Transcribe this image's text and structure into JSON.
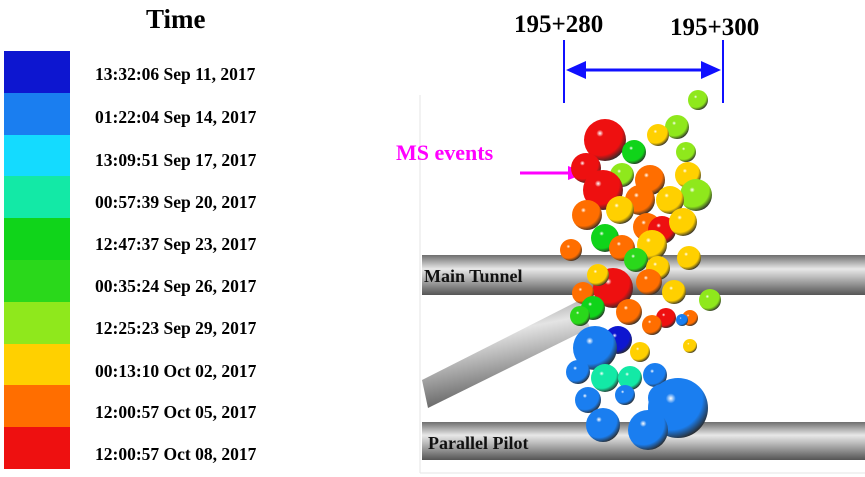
{
  "legend": {
    "title": "Time",
    "entries": [
      {
        "label": "13:32:06 Sep 11, 2017",
        "color": "#0d16d0"
      },
      {
        "label": "01:22:04 Sep 14, 2017",
        "color": "#1a7ef0"
      },
      {
        "label": "13:09:51 Sep 17, 2017",
        "color": "#14dbff"
      },
      {
        "label": "00:57:39 Sep 20, 2017",
        "color": "#13e9a6"
      },
      {
        "label": "12:47:37 Sep 23, 2017",
        "color": "#10d41a"
      },
      {
        "label": "00:35:24 Sep 26, 2017",
        "color": "#2ad81b"
      },
      {
        "label": "12:25:23 Sep 29, 2017",
        "color": "#8fe81c"
      },
      {
        "label": "00:13:10 Oct 02, 2017",
        "color": "#ffd000"
      },
      {
        "label": "12:00:57 Oct 05, 2017",
        "color": "#ff6e00"
      },
      {
        "label": "12:00:57 Oct 08, 2017",
        "color": "#ee1010"
      }
    ]
  },
  "scene": {
    "chainage_left": "195+280",
    "chainage_right": "195+300",
    "main_tunnel_label": "Main Tunnel",
    "parallel_pilot_label": "Parallel Pilot",
    "ms_events_label": "MS events",
    "arrow_color": "#1010ff",
    "ms_color": "#ff00ff",
    "tunnel_color": "#9a9a9a"
  }
}
